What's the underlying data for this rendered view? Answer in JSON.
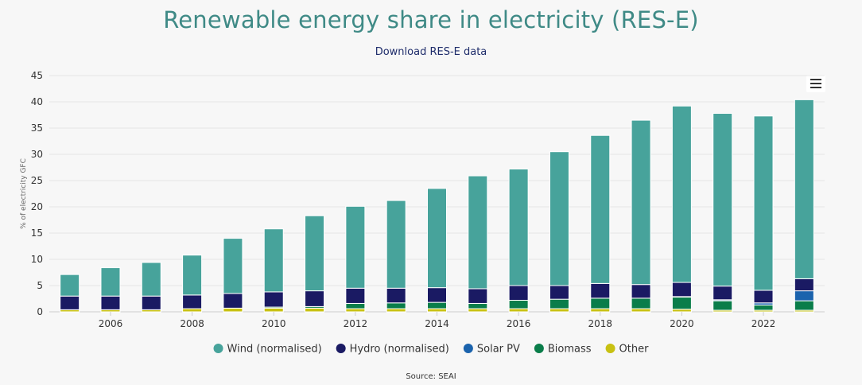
{
  "header": {
    "title": "Renewable energy share in electricity (RES-E)",
    "download_label": "Download RES-E data"
  },
  "footer": {
    "source": "Source: SEAI"
  },
  "icons": {
    "menu": "hamburger-menu-icon"
  },
  "chart_data": {
    "type": "bar",
    "stacked": true,
    "title": "Renewable energy share in electricity (RES-E)",
    "ylabel": "% of electricity GFC",
    "xlabel": "",
    "ylim": [
      0,
      45
    ],
    "yticks": [
      0,
      5,
      10,
      15,
      20,
      25,
      30,
      35,
      40,
      45
    ],
    "grid": true,
    "legend_position": "bottom",
    "categories": [
      "2005",
      "2006",
      "2007",
      "2008",
      "2009",
      "2010",
      "2011",
      "2012",
      "2013",
      "2014",
      "2015",
      "2016",
      "2017",
      "2018",
      "2019",
      "2020",
      "2021",
      "2022",
      "2023"
    ],
    "x_tick_labels": [
      "2006",
      "2008",
      "2010",
      "2012",
      "2014",
      "2016",
      "2018",
      "2020",
      "2022"
    ],
    "series": [
      {
        "name": "Other",
        "color": "#c8c112",
        "values": [
          0.4,
          0.4,
          0.4,
          0.6,
          0.7,
          0.7,
          0.7,
          0.6,
          0.6,
          0.6,
          0.6,
          0.6,
          0.6,
          0.6,
          0.6,
          0.5,
          0.3,
          0.3,
          0.3
        ]
      },
      {
        "name": "Biomass",
        "color": "#0a7d4a",
        "values": [
          0,
          0,
          0,
          0,
          0,
          0.2,
          0.3,
          1.0,
          1.1,
          1.2,
          1.0,
          1.6,
          1.8,
          2.0,
          2.0,
          2.3,
          1.8,
          1.0,
          1.8
        ]
      },
      {
        "name": "Solar PV",
        "color": "#1b63ad",
        "values": [
          0,
          0,
          0,
          0,
          0,
          0,
          0,
          0,
          0,
          0,
          0,
          0,
          0,
          0,
          0,
          0.1,
          0.2,
          0.4,
          1.9
        ]
      },
      {
        "name": "Hydro (normalised)",
        "color": "#1a1a63",
        "values": [
          2.6,
          2.6,
          2.6,
          2.6,
          2.8,
          2.9,
          3.0,
          2.9,
          2.8,
          2.8,
          2.8,
          2.8,
          2.6,
          2.8,
          2.6,
          2.7,
          2.6,
          2.4,
          2.3
        ]
      },
      {
        "name": "Wind (normalised)",
        "color": "#47a39b",
        "values": [
          4.1,
          5.4,
          6.4,
          7.6,
          10.5,
          12.0,
          14.3,
          15.6,
          16.7,
          18.9,
          21.5,
          22.2,
          25.5,
          28.2,
          31.3,
          33.6,
          32.9,
          33.2,
          34.1
        ]
      }
    ],
    "legend_order": [
      "Wind (normalised)",
      "Hydro (normalised)",
      "Solar PV",
      "Biomass",
      "Other"
    ]
  }
}
